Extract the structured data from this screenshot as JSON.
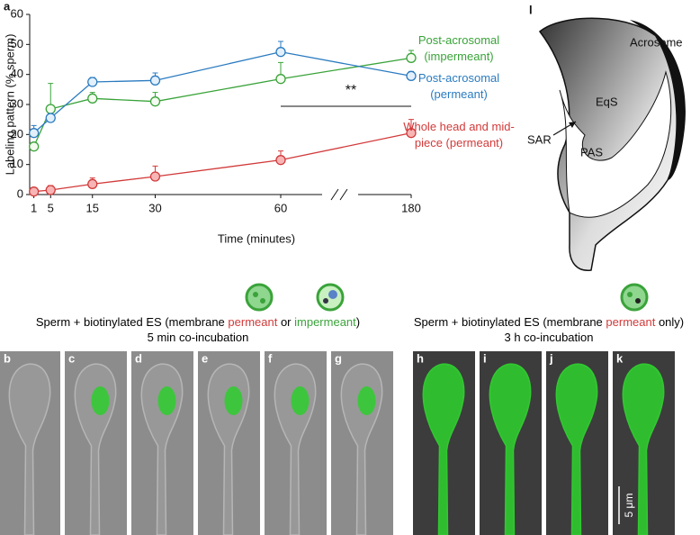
{
  "chart_data": {
    "type": "line",
    "panel_label": "a",
    "x_label": "Time (minutes)",
    "y_label": "Labeling pattern (% sperm)",
    "x": [
      1,
      5,
      15,
      30,
      60,
      180
    ],
    "xlim": [
      0,
      180
    ],
    "xticks": [
      1,
      5,
      15,
      30,
      60,
      180
    ],
    "axis_break": true,
    "ylim": [
      0,
      60
    ],
    "yticks": [
      0,
      10,
      20,
      30,
      40,
      50,
      60
    ],
    "series": [
      {
        "name": "Post-acrosomal (impermeant)",
        "color": "#3aa33a",
        "marker_fill": "#f4fbef",
        "values": [
          16,
          28.5,
          32,
          31,
          38.5,
          45.5
        ],
        "errors": [
          0.5,
          8.5,
          2,
          3,
          5.5,
          2.5
        ]
      },
      {
        "name": "Post-acrosomal (permeant)",
        "color": "#2b7bc0",
        "marker_fill": "#e3f0fb",
        "values": [
          20.5,
          25.5,
          37.5,
          38,
          47.5,
          39.5
        ],
        "errors": [
          2.5,
          1.5,
          1.5,
          2.5,
          3.5,
          1.5
        ]
      },
      {
        "name": "Whole head and mid-piece (permeant)",
        "color": "#d23a3a",
        "marker_fill": "#f7b5b5",
        "values": [
          1,
          1.5,
          3.5,
          6,
          11.5,
          20.5
        ],
        "errors": [
          1,
          1.5,
          2,
          3.5,
          3,
          4.5
        ]
      }
    ],
    "annotation": "**"
  },
  "diagram": {
    "panel_label": "l",
    "labels": [
      "Acrosome",
      "EqS",
      "SAR",
      "PAS"
    ]
  },
  "images": {
    "groups": [
      {
        "line1": [
          {
            "text": "Sperm + biotinylated ES (membrane "
          },
          {
            "text": "permeant",
            "color": "#d23a3a"
          },
          {
            "text": " or "
          },
          {
            "text": "impermeant",
            "color": "#3aa33a"
          },
          {
            "text": ")"
          }
        ],
        "line2": "5 min co-incubation",
        "panels": [
          "b",
          "c",
          "d",
          "e",
          "f",
          "g"
        ]
      },
      {
        "line1": [
          {
            "text": "Sperm + biotinylated ES (membrane "
          },
          {
            "text": "permeant",
            "color": "#d23a3a"
          },
          {
            "text": " only)"
          }
        ],
        "line2": "3 h co-incubation",
        "panels": [
          "h",
          "i",
          "j",
          "k"
        ]
      }
    ],
    "scale_bar": "5 μm"
  }
}
